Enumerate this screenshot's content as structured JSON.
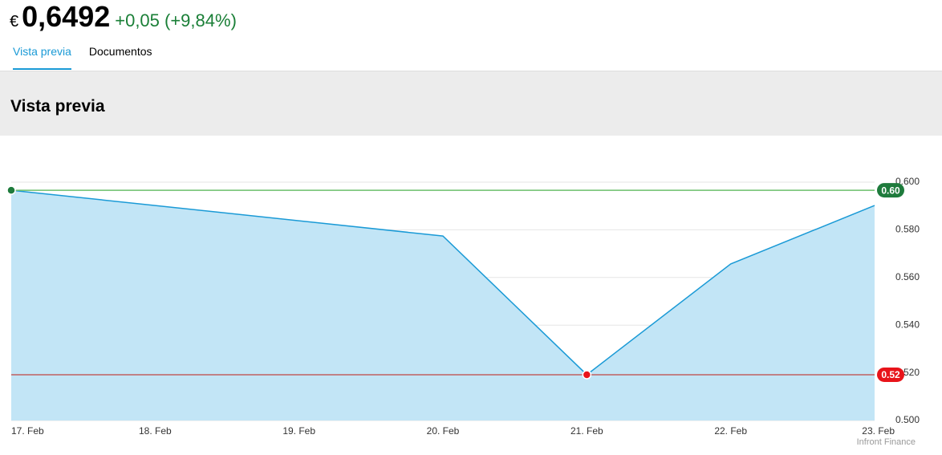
{
  "header": {
    "currency": "€",
    "price": "0,6492",
    "change": "+0,05 (+9,84%)"
  },
  "tabs": [
    "Vista previa",
    "Documentos"
  ],
  "section_title": "Vista previa",
  "chart_data": {
    "type": "area",
    "categories": [
      "17. Feb",
      "18. Feb",
      "19. Feb",
      "20. Feb",
      "21. Feb",
      "22. Feb",
      "23. Feb"
    ],
    "values": [
      0.5966,
      null,
      null,
      0.5774,
      0.5192,
      0.5657,
      0.5902
    ],
    "color": "#1a9ad6",
    "fill_color": "#c2e5f6",
    "ylim": [
      0.5,
      0.6
    ],
    "yticks": [
      {
        "value": 0.5,
        "label": "0.500"
      },
      {
        "value": 0.52,
        "label": "0.520"
      },
      {
        "value": 0.54,
        "label": "0.540"
      },
      {
        "value": 0.56,
        "label": "0.560"
      },
      {
        "value": 0.58,
        "label": "0.580"
      },
      {
        "value": 0.6,
        "label": "0.600"
      }
    ],
    "grid": true,
    "reference_lines": [
      {
        "value": 0.5966,
        "label": "0.60",
        "color": "#1e7b3c",
        "line_color": "#6cbf6c"
      },
      {
        "value": 0.5192,
        "label": "0.52",
        "color": "#e8141a",
        "line_color": "#c06060"
      }
    ],
    "credit": "Infront Finance"
  }
}
